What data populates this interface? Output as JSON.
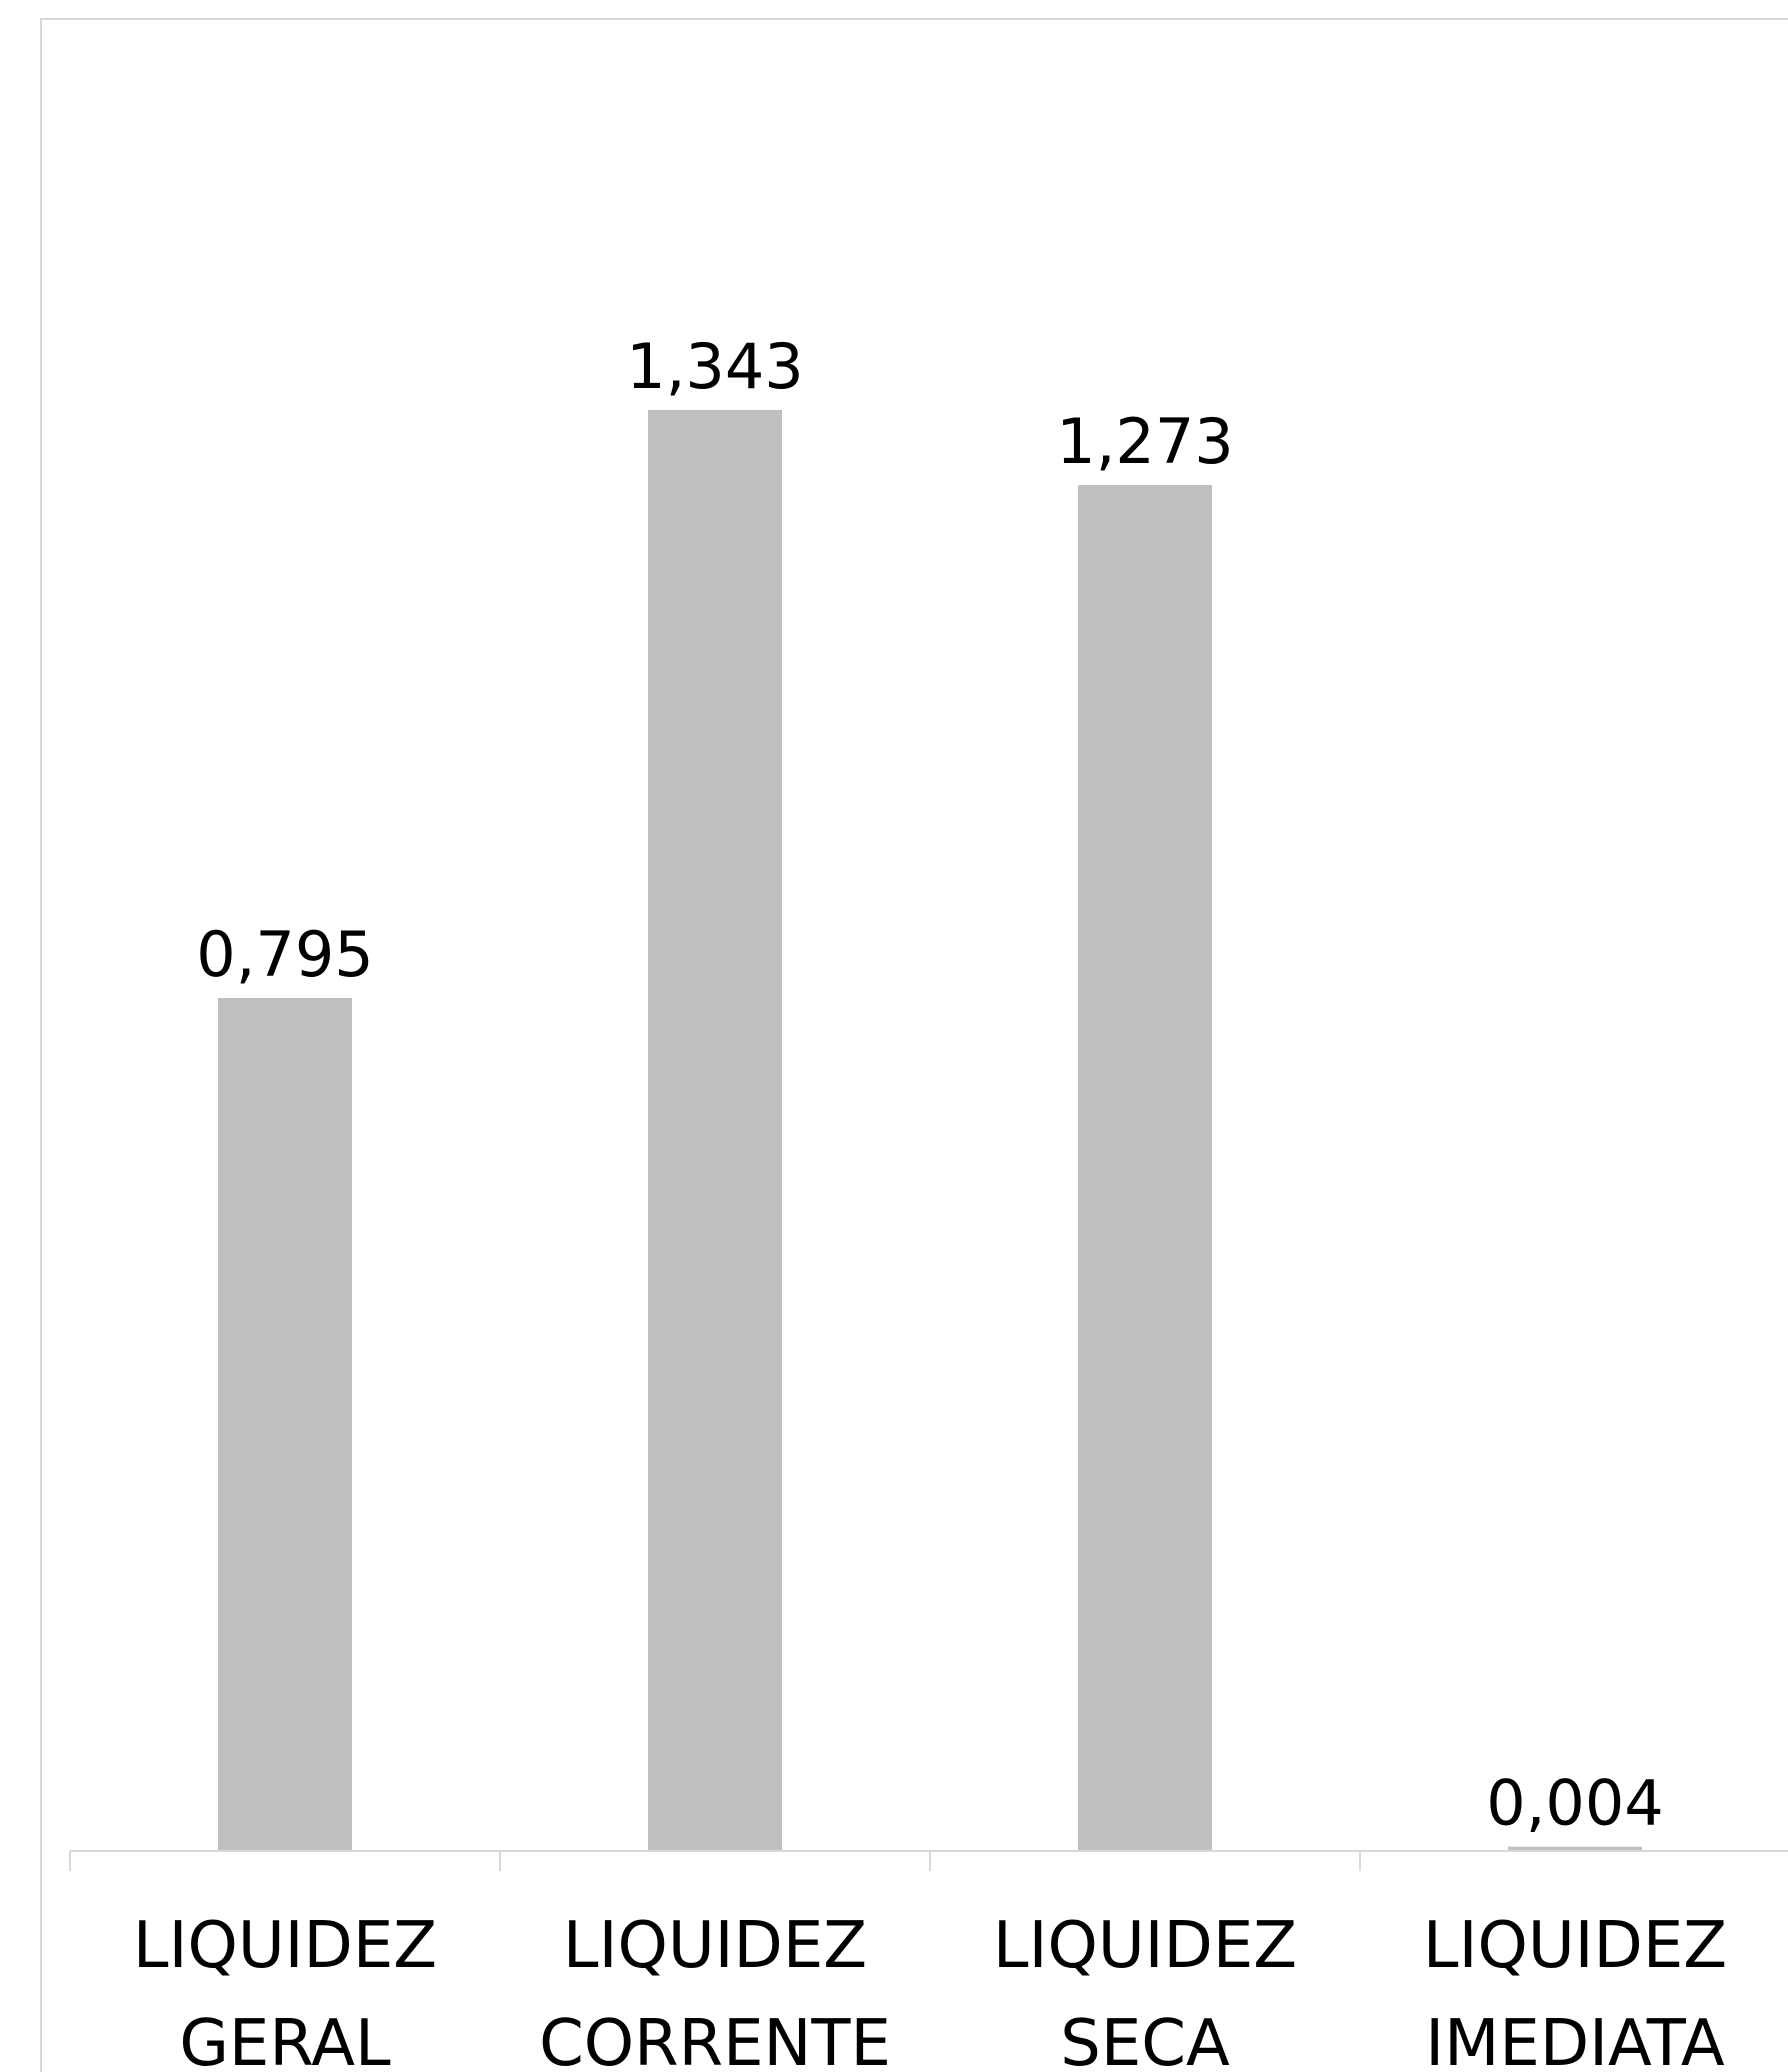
{
  "chart_data": {
    "type": "bar",
    "categories": [
      [
        "LIQUIDEZ",
        "GERAL"
      ],
      [
        "LIQUIDEZ",
        "CORRENTE"
      ],
      [
        "LIQUIDEZ",
        "SECA"
      ],
      [
        "LIQUIDEZ",
        "IMEDIATA"
      ]
    ],
    "values": [
      0.795,
      1.343,
      1.273,
      0.004
    ],
    "value_labels": [
      "0,795",
      "1,343",
      "1,273",
      "0,004"
    ],
    "title": "",
    "xlabel": "",
    "ylabel": "",
    "grid": false,
    "legend": "none",
    "bar_color": "#bfbfbf"
  }
}
